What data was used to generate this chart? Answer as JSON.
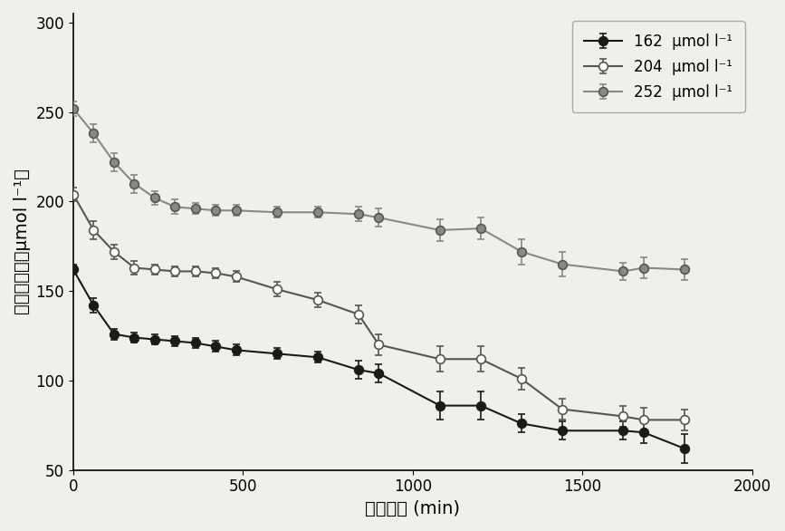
{
  "series": [
    {
      "label": "162  μmol l⁻¹",
      "color": "#1a1a1a",
      "marker_facecolor": "#1a1a1a",
      "marker_edgecolor": "#1a1a1a",
      "marker": "o",
      "x": [
        0,
        60,
        120,
        180,
        240,
        300,
        360,
        420,
        480,
        600,
        720,
        840,
        900,
        1080,
        1200,
        1320,
        1440,
        1620,
        1680,
        1800
      ],
      "y": [
        162,
        142,
        126,
        124,
        123,
        122,
        121,
        119,
        117,
        115,
        113,
        106,
        104,
        86,
        86,
        76,
        72,
        72,
        71,
        62
      ],
      "yerr": [
        3,
        4,
        3,
        3,
        3,
        3,
        3,
        3,
        3,
        3,
        3,
        5,
        5,
        8,
        8,
        5,
        5,
        5,
        6,
        8
      ]
    },
    {
      "label": "204  μmol l⁻¹",
      "color": "#555555",
      "marker_facecolor": "#ffffff",
      "marker_edgecolor": "#555555",
      "marker": "o",
      "x": [
        0,
        60,
        120,
        180,
        240,
        300,
        360,
        420,
        480,
        600,
        720,
        840,
        900,
        1080,
        1200,
        1320,
        1440,
        1620,
        1680,
        1800
      ],
      "y": [
        204,
        184,
        172,
        163,
        162,
        161,
        161,
        160,
        158,
        151,
        145,
        137,
        120,
        112,
        112,
        101,
        84,
        80,
        78,
        78
      ],
      "yerr": [
        4,
        5,
        4,
        4,
        3,
        3,
        3,
        3,
        3,
        4,
        4,
        5,
        6,
        7,
        7,
        6,
        6,
        6,
        7,
        6
      ]
    },
    {
      "label": "252  μmol l⁻¹",
      "color": "#888888",
      "marker_facecolor": "#888888",
      "marker_edgecolor": "#555555",
      "marker": "o",
      "x": [
        0,
        60,
        120,
        180,
        240,
        300,
        360,
        420,
        480,
        600,
        720,
        840,
        900,
        1080,
        1200,
        1320,
        1440,
        1620,
        1680,
        1800
      ],
      "y": [
        252,
        238,
        222,
        210,
        202,
        197,
        196,
        195,
        195,
        194,
        194,
        193,
        191,
        184,
        185,
        172,
        165,
        161,
        163,
        162
      ],
      "yerr": [
        4,
        5,
        5,
        5,
        4,
        4,
        3,
        3,
        3,
        3,
        3,
        4,
        5,
        6,
        6,
        7,
        7,
        5,
        6,
        6
      ]
    }
  ],
  "xlabel": "耗竭时间 (min)",
  "ylabel": "耗竭液浓度（μmol l⁻¹）",
  "xlim": [
    0,
    2000
  ],
  "ylim": [
    50,
    305
  ],
  "xticks": [
    0,
    500,
    1000,
    1500,
    2000
  ],
  "yticks": [
    50,
    100,
    150,
    200,
    250,
    300
  ],
  "background_color": "#f0f0eb",
  "legend_loc": "upper right",
  "linewidth": 1.5,
  "markersize": 7,
  "capsize": 3,
  "elinewidth": 1.2
}
